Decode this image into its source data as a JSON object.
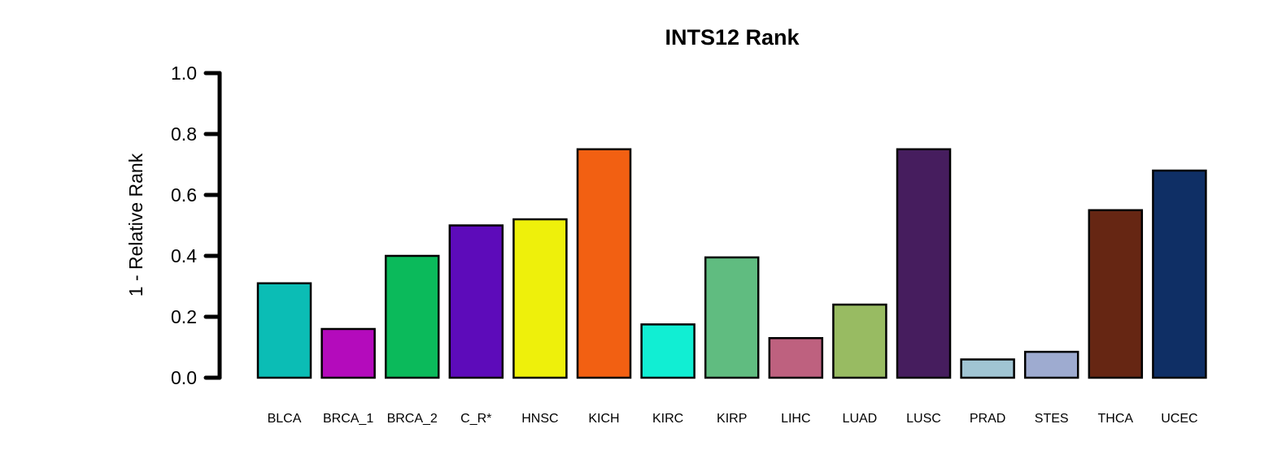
{
  "chart_data": {
    "type": "bar",
    "title": "INTS12 Rank",
    "xlabel": "",
    "ylabel": "1 - Relative Rank",
    "ylim": [
      0,
      1
    ],
    "yticks": [
      "0.0",
      "0.2",
      "0.4",
      "0.6",
      "0.8",
      "1.0"
    ],
    "grid": false,
    "legend": "none",
    "categories": [
      "BLCA",
      "BRCA_1",
      "BRCA_2",
      "C_R*",
      "HNSC",
      "KICH",
      "KIRC",
      "KIRP",
      "LIHC",
      "LUAD",
      "LUSC",
      "PRAD",
      "STES",
      "THCA",
      "UCEC"
    ],
    "values": [
      0.31,
      0.16,
      0.4,
      0.5,
      0.52,
      0.75,
      0.175,
      0.395,
      0.13,
      0.24,
      0.75,
      0.06,
      0.085,
      0.55,
      0.68
    ],
    "colors": [
      "#0bbdb5",
      "#b40bbc",
      "#0bba5b",
      "#5d0bba",
      "#eef00b",
      "#f26012",
      "#11eed3",
      "#60bc80",
      "#be617f",
      "#98bb62",
      "#461d5e",
      "#a0c5d3",
      "#9eabd0",
      "#662613",
      "#0f2f65"
    ]
  }
}
